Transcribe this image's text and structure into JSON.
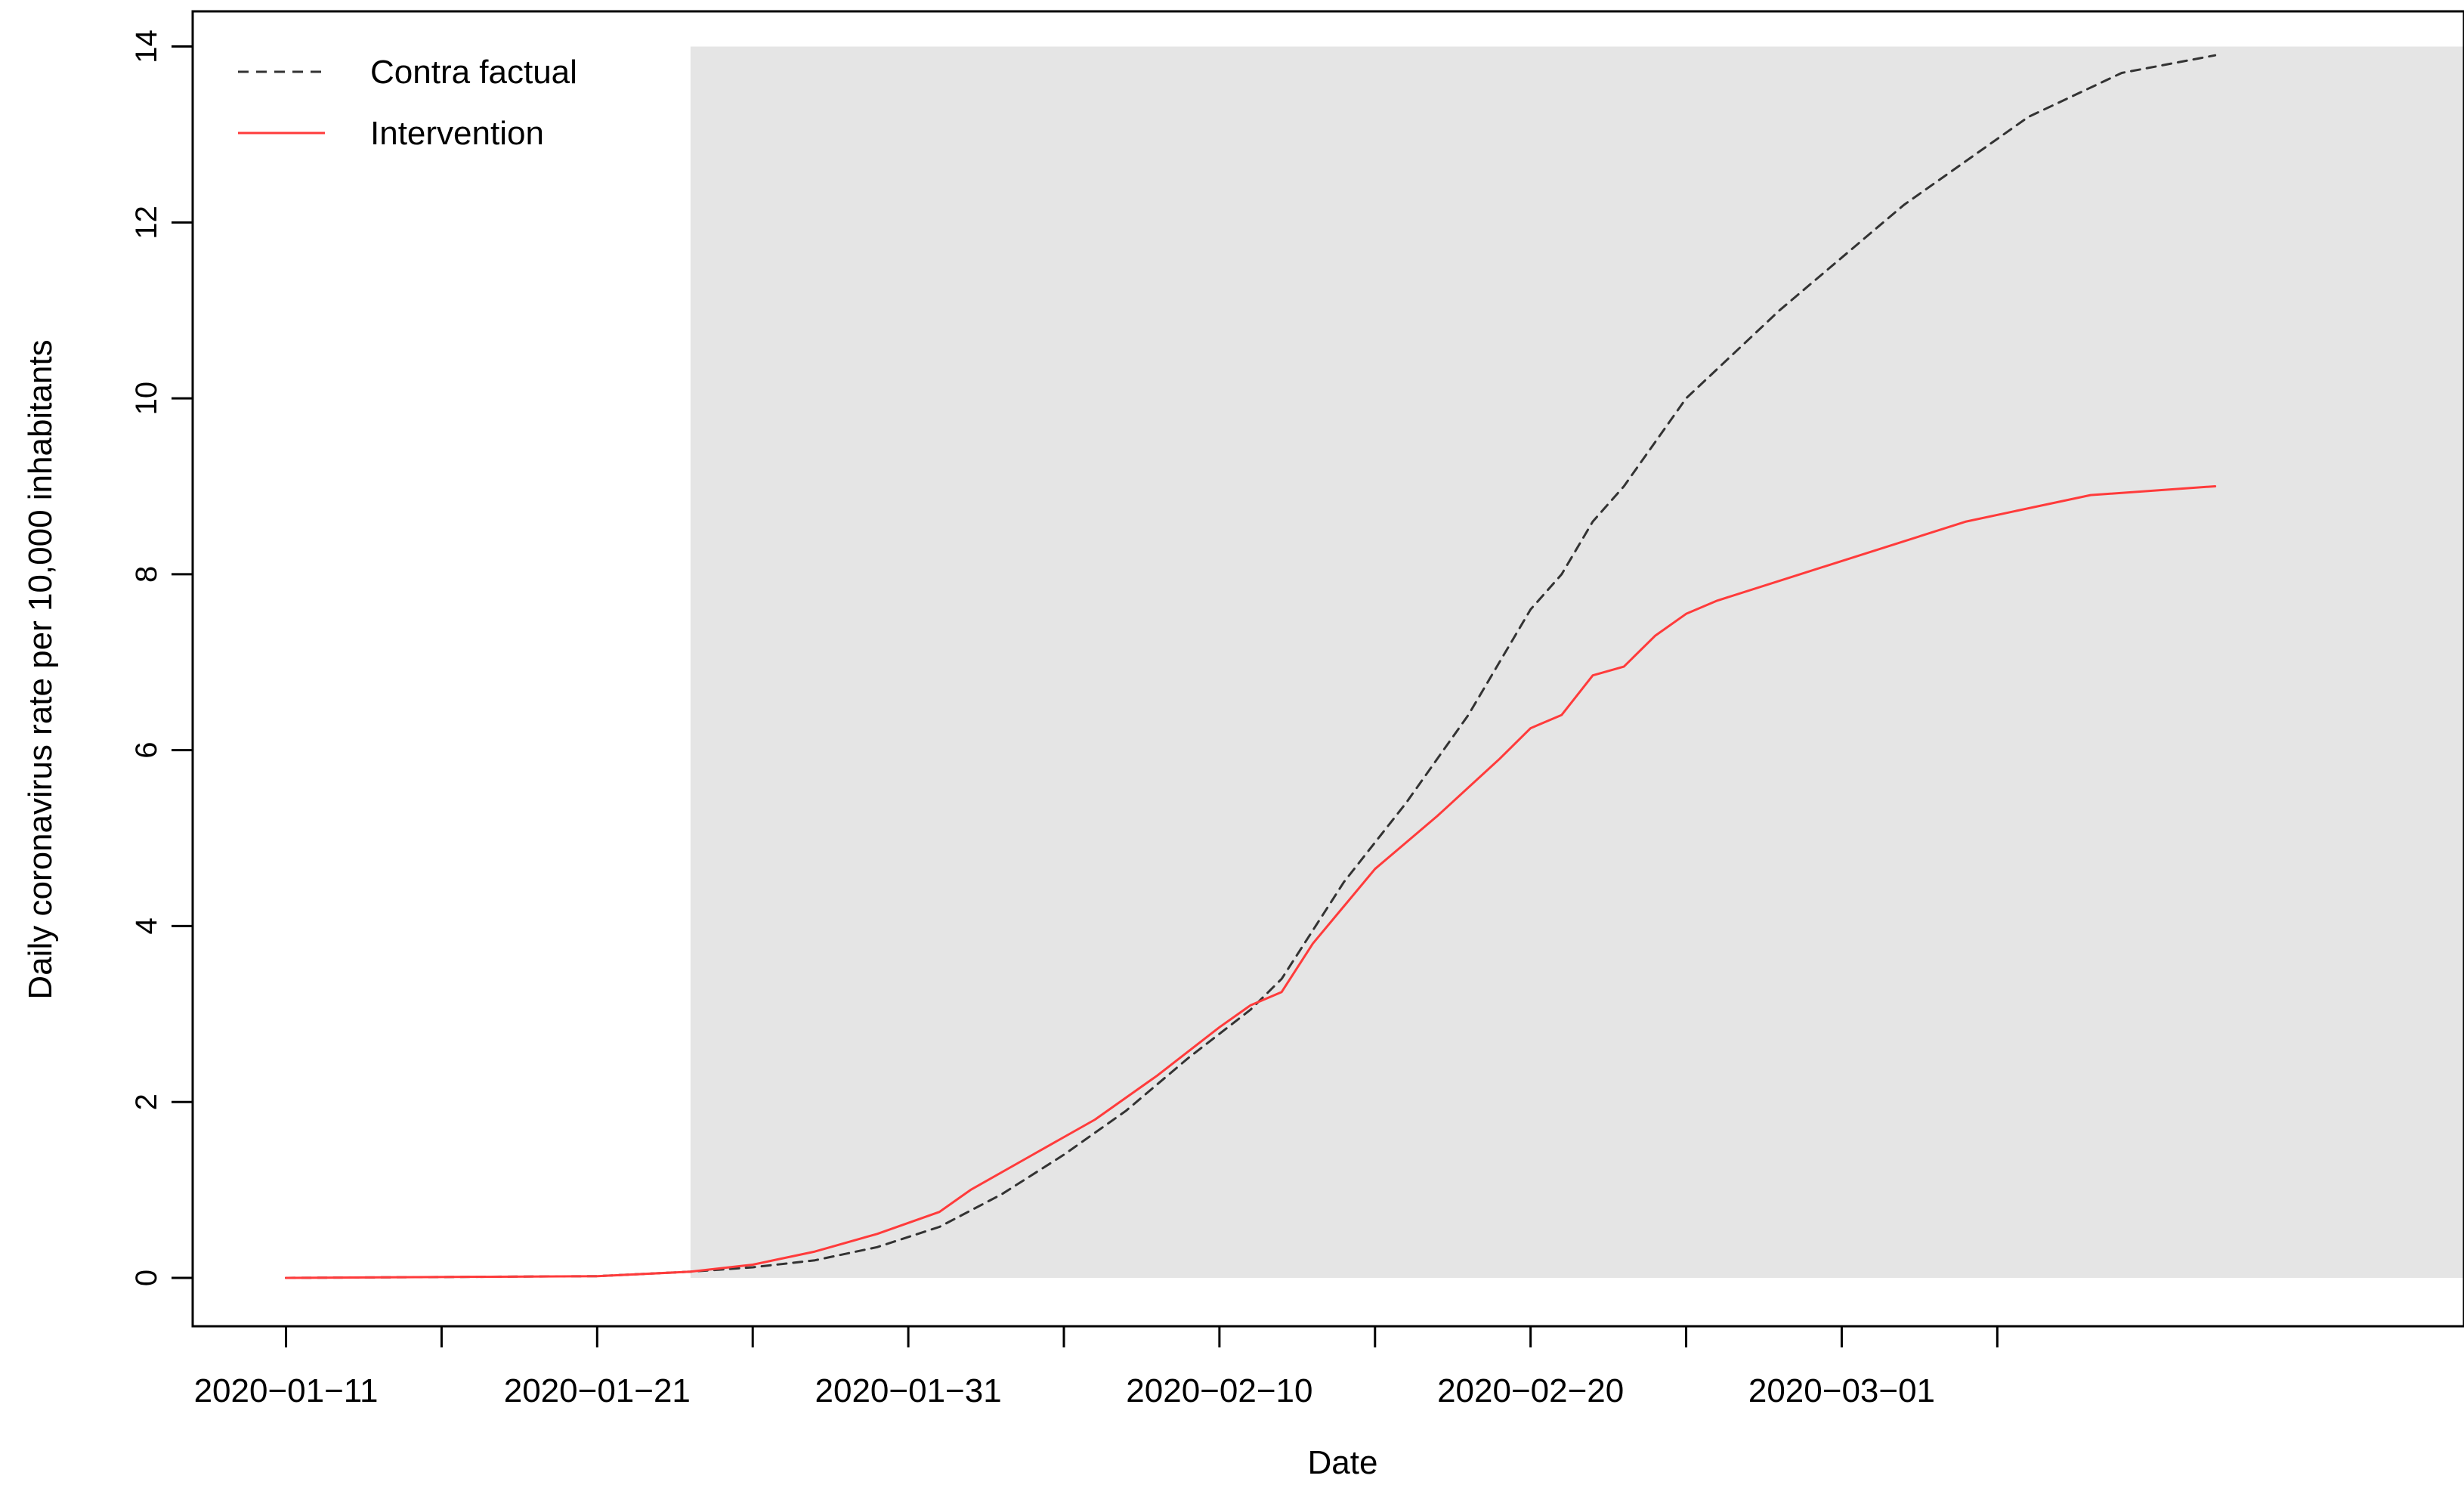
{
  "chart_data": {
    "type": "line",
    "title": "",
    "xlabel": "Date",
    "ylabel": "Daily coronavirus rate per 10,000 inhabitants",
    "x_type": "date",
    "xlim": [
      "2020-01-08",
      "2020-03-21"
    ],
    "ylim": [
      -0.55,
      14.4
    ],
    "x_ticks": [
      "2020-01-11",
      "2020-01-16",
      "2020-01-21",
      "2020-01-26",
      "2020-01-31",
      "2020-02-05",
      "2020-02-10",
      "2020-02-15",
      "2020-02-20",
      "2020-02-25",
      "2020-03-01",
      "2020-03-06"
    ],
    "x_tick_labels": [
      {
        "date": "2020-01-11",
        "label": "2020−01−11"
      },
      {
        "date": "2020-01-21",
        "label": "2020−01−21"
      },
      {
        "date": "2020-01-31",
        "label": "2020−01−31"
      },
      {
        "date": "2020-02-10",
        "label": "2020−02−10"
      },
      {
        "date": "2020-02-20",
        "label": "2020−02−20"
      },
      {
        "date": "2020-03-01",
        "label": "2020−03−01"
      }
    ],
    "y_ticks": [
      "0",
      "2",
      "4",
      "6",
      "8",
      "10",
      "12",
      "14"
    ],
    "grid": false,
    "legend_position": "top-left",
    "shaded_region": {
      "x_start": "2020-01-24",
      "x_end": "2020-03-21",
      "y_start": 0,
      "y_end": 14,
      "color": "#e5e5e5"
    },
    "series": [
      {
        "name": "Contra factual",
        "color": "#333333",
        "style": "dashed",
        "points": [
          [
            "2020-01-11",
            0.0
          ],
          [
            "2020-01-21",
            0.02
          ],
          [
            "2020-01-24",
            0.07
          ],
          [
            "2020-01-26",
            0.12
          ],
          [
            "2020-01-28",
            0.2
          ],
          [
            "2020-01-30",
            0.35
          ],
          [
            "2020-02-01",
            0.58
          ],
          [
            "2020-02-03",
            0.95
          ],
          [
            "2020-02-05",
            1.4
          ],
          [
            "2020-02-07",
            1.9
          ],
          [
            "2020-02-09",
            2.5
          ],
          [
            "2020-02-11",
            3.05
          ],
          [
            "2020-02-12",
            3.4
          ],
          [
            "2020-02-14",
            4.5
          ],
          [
            "2020-02-16",
            5.4
          ],
          [
            "2020-02-18",
            6.4
          ],
          [
            "2020-02-20",
            7.6
          ],
          [
            "2020-02-21",
            8.0
          ],
          [
            "2020-02-22",
            8.6
          ],
          [
            "2020-02-23",
            9.0
          ],
          [
            "2020-02-25",
            10.0
          ],
          [
            "2020-02-28",
            11.0
          ],
          [
            "2020-03-03",
            12.2
          ],
          [
            "2020-03-07",
            13.2
          ],
          [
            "2020-03-10",
            13.7
          ],
          [
            "2020-03-13",
            13.9
          ]
        ]
      },
      {
        "name": "Intervention",
        "color": "#ff3b3b",
        "style": "solid",
        "points": [
          [
            "2020-01-11",
            0.0
          ],
          [
            "2020-01-21",
            0.02
          ],
          [
            "2020-01-24",
            0.07
          ],
          [
            "2020-01-26",
            0.15
          ],
          [
            "2020-01-28",
            0.3
          ],
          [
            "2020-01-30",
            0.5
          ],
          [
            "2020-02-01",
            0.75
          ],
          [
            "2020-02-02",
            1.0
          ],
          [
            "2020-02-04",
            1.4
          ],
          [
            "2020-02-06",
            1.8
          ],
          [
            "2020-02-08",
            2.3
          ],
          [
            "2020-02-10",
            2.85
          ],
          [
            "2020-02-11",
            3.1
          ],
          [
            "2020-02-12",
            3.25
          ],
          [
            "2020-02-13",
            3.8
          ],
          [
            "2020-02-15",
            4.65
          ],
          [
            "2020-02-17",
            5.25
          ],
          [
            "2020-02-19",
            5.9
          ],
          [
            "2020-02-20",
            6.25
          ],
          [
            "2020-02-21",
            6.4
          ],
          [
            "2020-02-22",
            6.85
          ],
          [
            "2020-02-23",
            6.95
          ],
          [
            "2020-02-24",
            7.3
          ],
          [
            "2020-02-25",
            7.55
          ],
          [
            "2020-02-26",
            7.7
          ],
          [
            "2020-03-01",
            8.15
          ],
          [
            "2020-03-05",
            8.6
          ],
          [
            "2020-03-09",
            8.9
          ],
          [
            "2020-03-13",
            9.0
          ]
        ]
      }
    ]
  }
}
